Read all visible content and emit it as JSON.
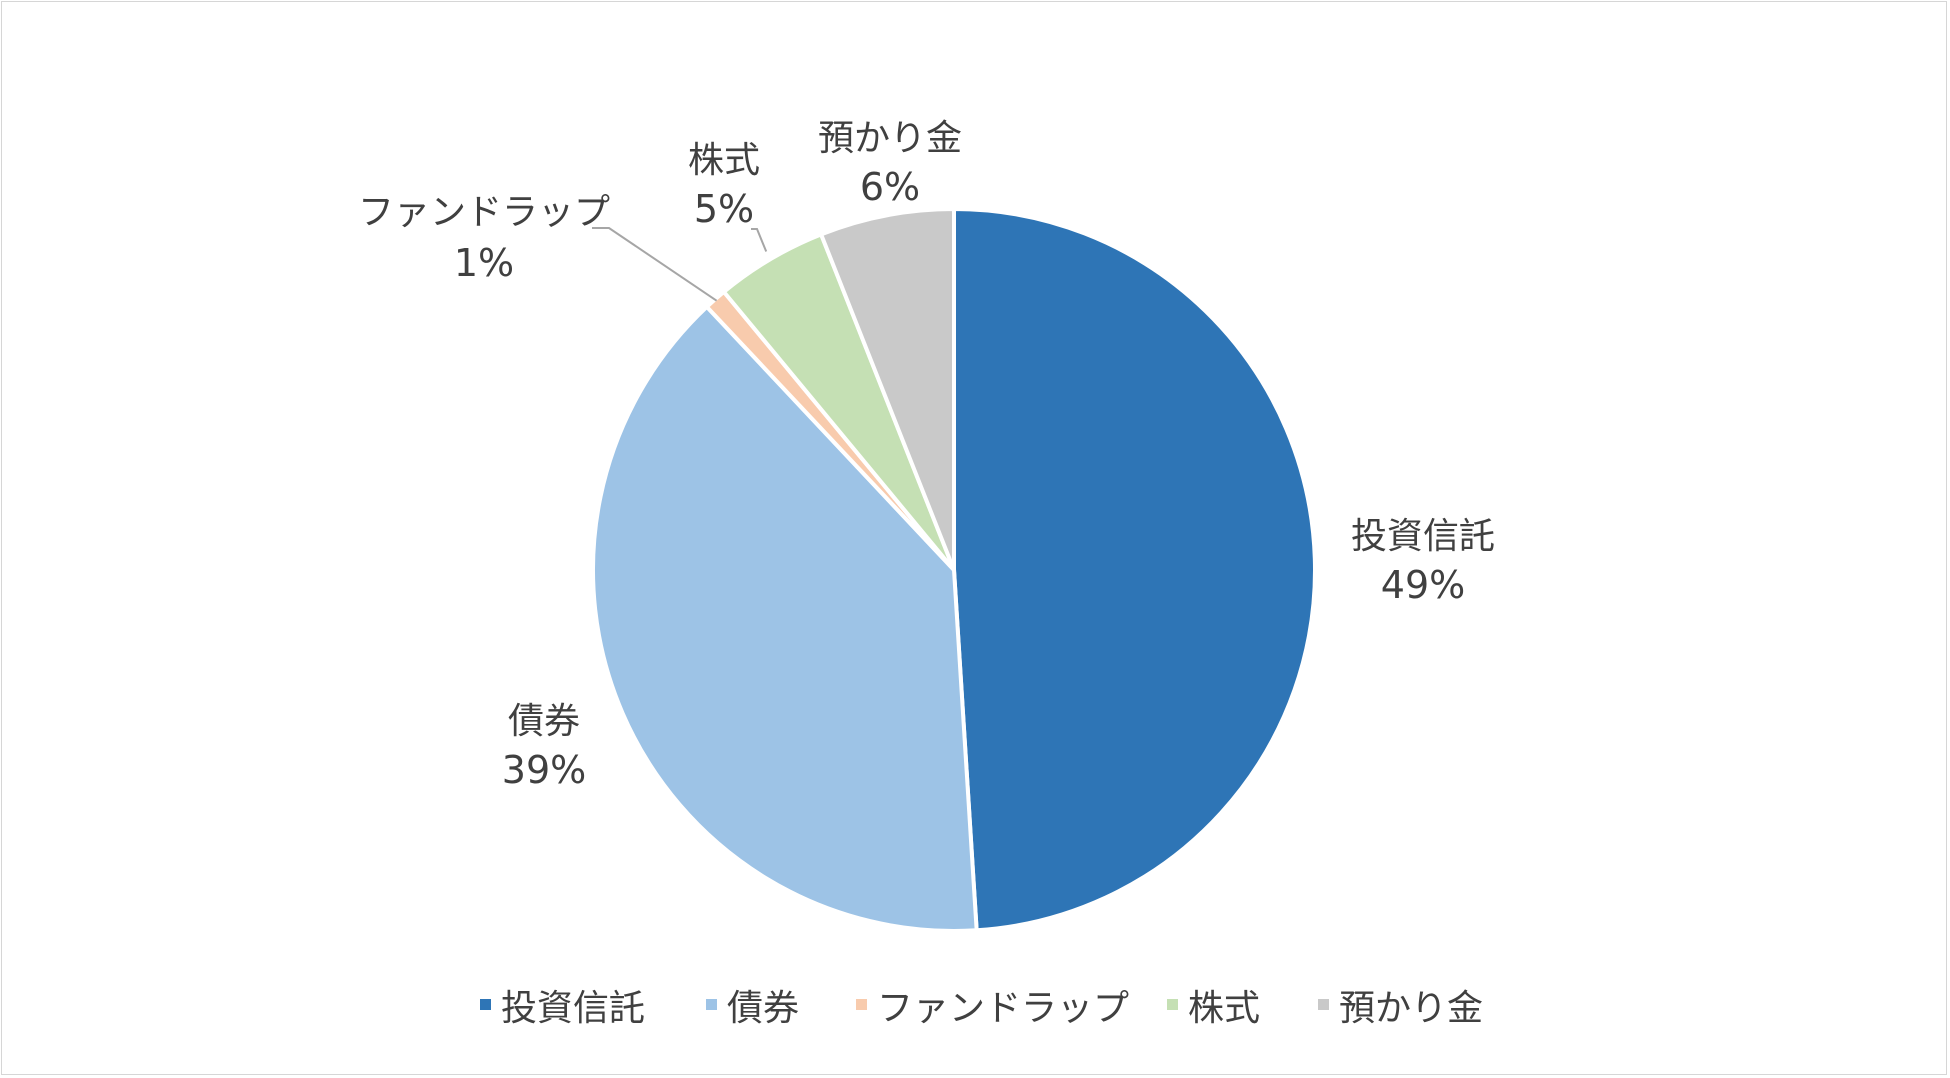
{
  "chart_data": {
    "type": "pie",
    "title": "",
    "legend_position": "bottom",
    "slices": [
      {
        "name": "投資信託",
        "value": 49,
        "label": "49%",
        "color": "#2e75b6"
      },
      {
        "name": "債券",
        "value": 39,
        "label": "39%",
        "color": "#9dc3e6"
      },
      {
        "name": "ファンドラップ",
        "value": 1,
        "label": "1%",
        "color": "#f8cbad"
      },
      {
        "name": "株式",
        "value": 5,
        "label": "5%",
        "color": "#c5e0b4"
      },
      {
        "name": "預かり金",
        "value": 6,
        "label": "6%",
        "color": "#c9c9c9"
      }
    ]
  }
}
